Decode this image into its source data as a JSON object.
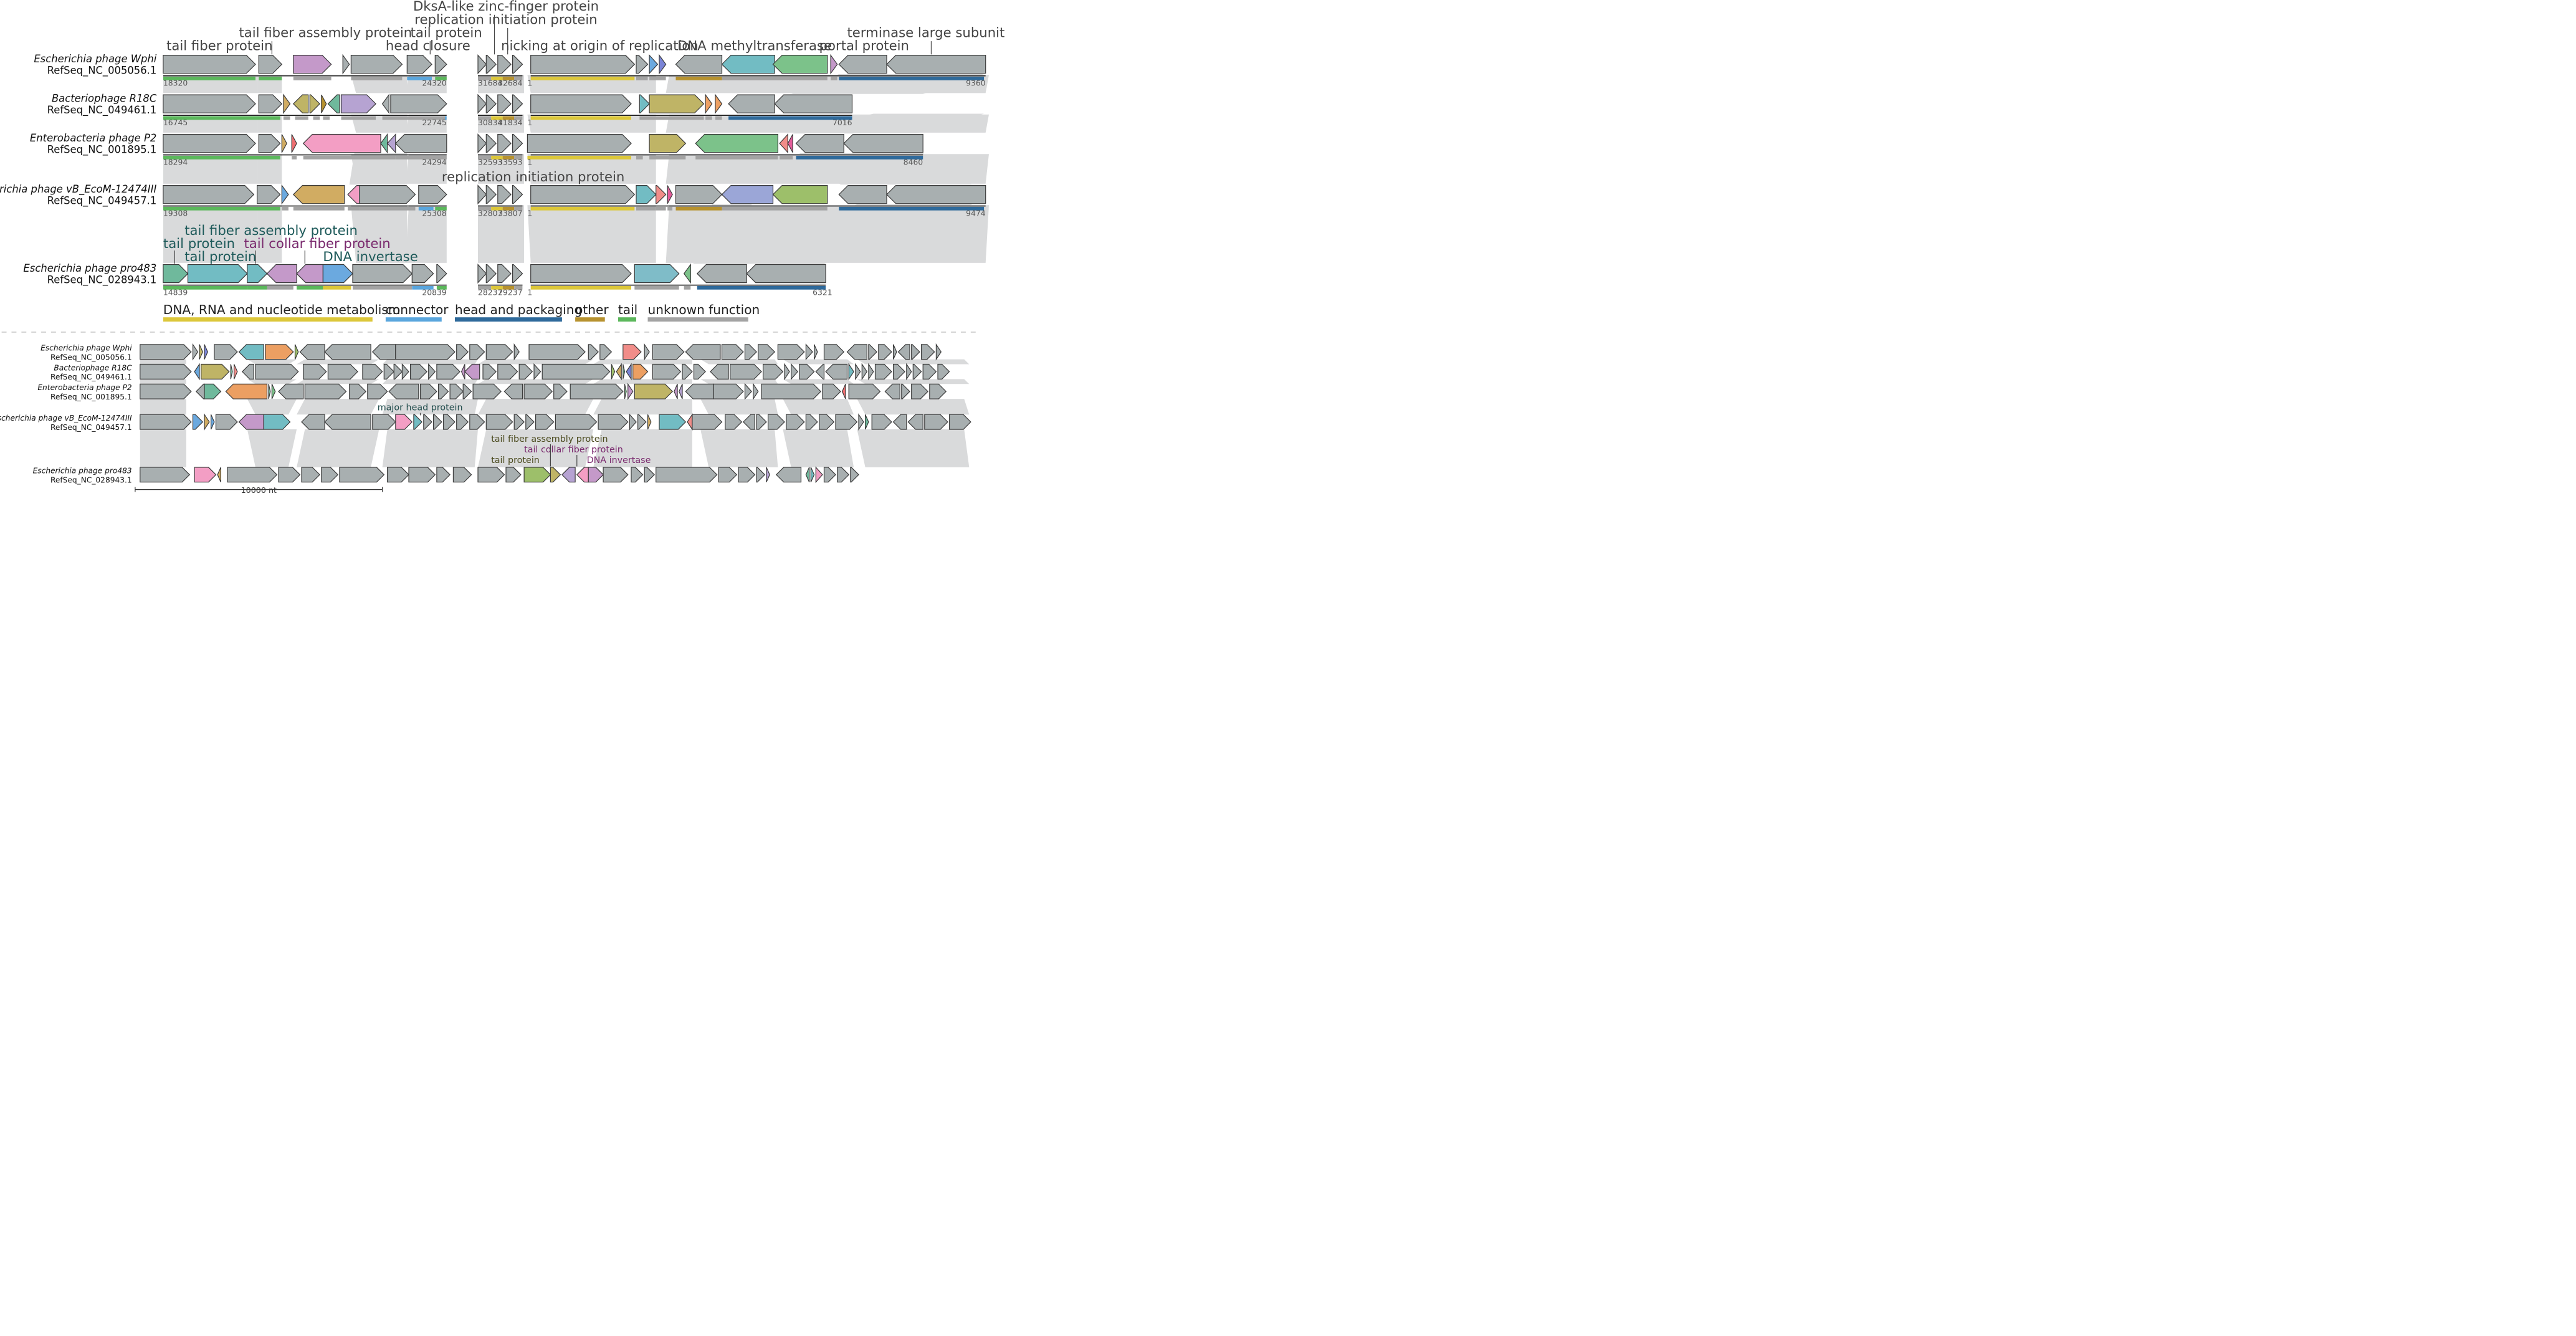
{
  "colors": {
    "gene_default": "#a8afb0",
    "gene_stroke": "#3a3a3a",
    "ribbon": "#d9dadb",
    "backbone": "#222222",
    "dashed_separator": "#cfcfcf"
  },
  "categories": [
    {
      "id": "dna",
      "label": "DNA, RNA and nucleotide metabolism",
      "color": "#dcc73a"
    },
    {
      "id": "connector",
      "label": "connector",
      "color": "#5aa6dd"
    },
    {
      "id": "head",
      "label": "head and packaging",
      "color": "#2f6a9b"
    },
    {
      "id": "other",
      "label": "other",
      "color": "#b7922f"
    },
    {
      "id": "tail",
      "label": "tail",
      "color": "#5cb85c"
    },
    {
      "id": "unknown",
      "label": "unknown function",
      "color": "#a3a3a3"
    }
  ],
  "genomes": [
    {
      "name": "Escherichia phage Wphi",
      "accession": "RefSeq_NC_005056.1"
    },
    {
      "name": "Bacteriophage R18C",
      "accession": "RefSeq_NC_049461.1"
    },
    {
      "name": "Enterobacteria phage P2",
      "accession": "RefSeq_NC_001895.1"
    },
    {
      "name": "Escherichia phage vB_EcoM-12474III",
      "accession": "RefSeq_NC_049457.1"
    },
    {
      "name": "Escherichia phage pro483",
      "accession": "RefSeq_NC_028943.1"
    }
  ],
  "top_panel": {
    "coordinates": [
      [
        "18320",
        "24320",
        "31684",
        "32684",
        "1",
        "9360"
      ],
      [
        "16745",
        "22745",
        "30834",
        "31834",
        "1",
        "7016"
      ],
      [
        "18294",
        "24294",
        "32593",
        "33593",
        "1",
        "8460"
      ],
      [
        "19308",
        "25308",
        "32807",
        "33807",
        "1",
        "9474"
      ],
      [
        "14839",
        "20839",
        "28237",
        "29237",
        "1",
        "6321"
      ]
    ],
    "annotations_top": [
      "tail fiber protein",
      "tail fiber assembly protein",
      "head closure",
      "tail protein",
      "DksA-like zinc-finger protein",
      "replication initiation protein",
      "nicking at origin of replication",
      "DNA methyltransferase",
      "portal protein",
      "terminase large subunit"
    ],
    "annotation_mid": "replication initiation protein",
    "annotations_pro483": [
      "tail fiber assembly protein",
      "tail protein",
      "tail collar fiber protein",
      "tail protein",
      "DNA invertase"
    ]
  },
  "bottom_panel": {
    "annotation_major_head": "major head protein",
    "annotations_pro483": [
      "tail fiber assembly protein",
      "tail collar fiber protein",
      "tail protein",
      "DNA invertase"
    ],
    "scale_label": "10000 nt"
  }
}
